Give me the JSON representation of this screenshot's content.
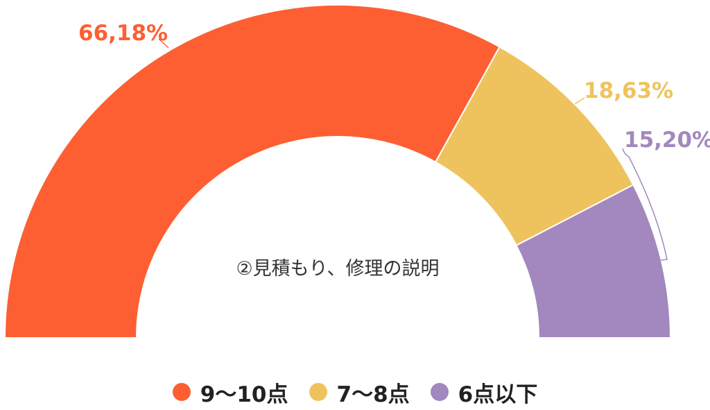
{
  "chart_data": {
    "type": "pie",
    "subtype": "semi-donut",
    "title": "②見積もり、修理の説明",
    "categories": [
      "9〜10点",
      "7〜8点",
      "6点以下"
    ],
    "values": [
      66.18,
      18.63,
      15.2
    ],
    "data_labels": [
      "66,18%",
      "18,63%",
      "15,20%"
    ],
    "colors": [
      "#FD5F33",
      "#EEC35E",
      "#A288BE"
    ],
    "legend_position": "bottom"
  }
}
